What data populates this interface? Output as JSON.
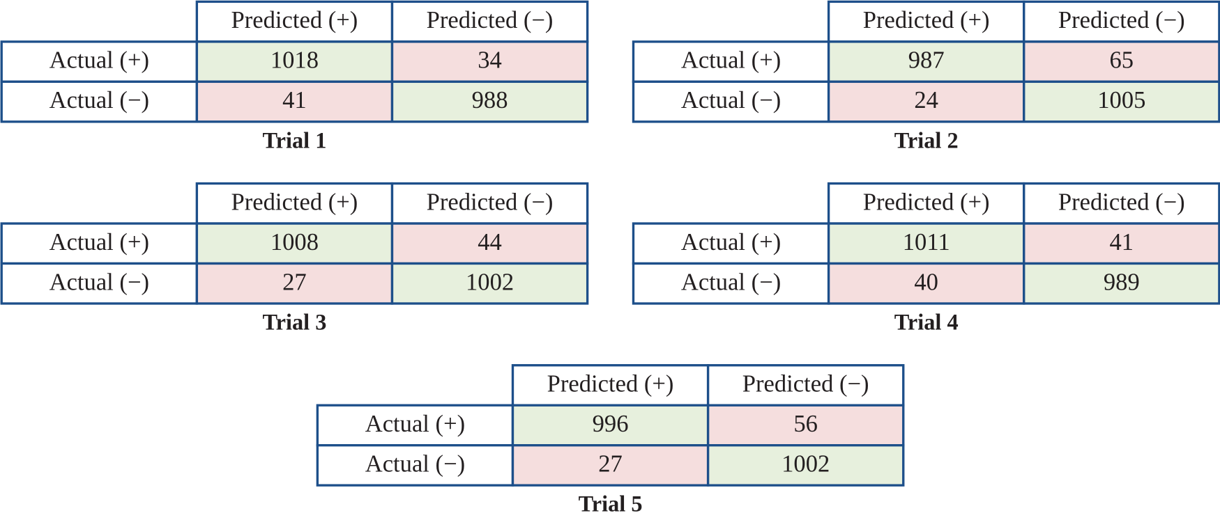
{
  "tables": [
    {
      "columns": [
        "Predicted (+)",
        "Predicted (−)"
      ],
      "rows": [
        {
          "label": "Actual (+)",
          "values": [
            1018,
            34
          ]
        },
        {
          "label": "Actual (−)",
          "values": [
            41,
            988
          ]
        }
      ],
      "caption": "Trial 1"
    },
    {
      "columns": [
        "Predicted (+)",
        "Predicted (−)"
      ],
      "rows": [
        {
          "label": "Actual (+)",
          "values": [
            987,
            65
          ]
        },
        {
          "label": "Actual (−)",
          "values": [
            24,
            1005
          ]
        }
      ],
      "caption": "Trial 2"
    },
    {
      "columns": [
        "Predicted (+)",
        "Predicted (−)"
      ],
      "rows": [
        {
          "label": "Actual (+)",
          "values": [
            1008,
            44
          ]
        },
        {
          "label": "Actual (−)",
          "values": [
            27,
            1002
          ]
        }
      ],
      "caption": "Trial 3"
    },
    {
      "columns": [
        "Predicted (+)",
        "Predicted (−)"
      ],
      "rows": [
        {
          "label": "Actual (+)",
          "values": [
            1011,
            41
          ]
        },
        {
          "label": "Actual (−)",
          "values": [
            40,
            989
          ]
        }
      ],
      "caption": "Trial 4"
    },
    {
      "columns": [
        "Predicted (+)",
        "Predicted (−)"
      ],
      "rows": [
        {
          "label": "Actual (+)",
          "values": [
            996,
            56
          ]
        },
        {
          "label": "Actual (−)",
          "values": [
            27,
            1002
          ]
        }
      ],
      "caption": "Trial 5"
    }
  ]
}
